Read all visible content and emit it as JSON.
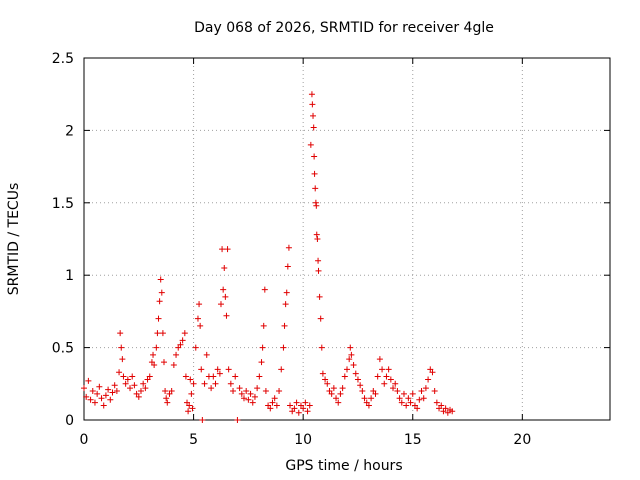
{
  "chart_data": {
    "type": "scatter",
    "title": "Day 068 of 2026, SRMTID for receiver 4gle",
    "xlabel": "GPS time / hours",
    "ylabel": "SRMTID / TECUs",
    "xlim": [
      0,
      24
    ],
    "ylim": [
      0,
      2.5
    ],
    "xticks": [
      "0",
      "5",
      "10",
      "15",
      "20"
    ],
    "yticks": [
      "0",
      "0.5",
      "1",
      "1.5",
      "2",
      "2.5"
    ],
    "grid": true,
    "marker": "plus",
    "color": "#e00000",
    "series": [
      {
        "name": "SRMTID",
        "points": [
          [
            0.0,
            0.22
          ],
          [
            0.1,
            0.16
          ],
          [
            0.2,
            0.27
          ],
          [
            0.3,
            0.14
          ],
          [
            0.4,
            0.2
          ],
          [
            0.5,
            0.12
          ],
          [
            0.6,
            0.18
          ],
          [
            0.7,
            0.23
          ],
          [
            0.8,
            0.15
          ],
          [
            0.9,
            0.1
          ],
          [
            1.0,
            0.17
          ],
          [
            1.1,
            0.21
          ],
          [
            1.2,
            0.14
          ],
          [
            1.3,
            0.19
          ],
          [
            1.4,
            0.24
          ],
          [
            1.5,
            0.2
          ],
          [
            1.6,
            0.33
          ],
          [
            1.65,
            0.6
          ],
          [
            1.7,
            0.5
          ],
          [
            1.75,
            0.42
          ],
          [
            1.8,
            0.3
          ],
          [
            1.9,
            0.25
          ],
          [
            2.0,
            0.28
          ],
          [
            2.1,
            0.22
          ],
          [
            2.2,
            0.3
          ],
          [
            2.3,
            0.24
          ],
          [
            2.4,
            0.18
          ],
          [
            2.5,
            0.16
          ],
          [
            2.6,
            0.2
          ],
          [
            2.7,
            0.25
          ],
          [
            2.8,
            0.22
          ],
          [
            2.9,
            0.28
          ],
          [
            3.0,
            0.3
          ],
          [
            3.1,
            0.4
          ],
          [
            3.15,
            0.45
          ],
          [
            3.2,
            0.38
          ],
          [
            3.3,
            0.5
          ],
          [
            3.35,
            0.6
          ],
          [
            3.4,
            0.7
          ],
          [
            3.45,
            0.82
          ],
          [
            3.5,
            0.97
          ],
          [
            3.55,
            0.88
          ],
          [
            3.6,
            0.6
          ],
          [
            3.65,
            0.4
          ],
          [
            3.7,
            0.2
          ],
          [
            3.75,
            0.15
          ],
          [
            3.8,
            0.12
          ],
          [
            3.9,
            0.18
          ],
          [
            4.0,
            0.2
          ],
          [
            4.1,
            0.38
          ],
          [
            4.2,
            0.45
          ],
          [
            4.3,
            0.5
          ],
          [
            4.4,
            0.52
          ],
          [
            4.5,
            0.55
          ],
          [
            4.6,
            0.6
          ],
          [
            4.65,
            0.3
          ],
          [
            4.7,
            0.12
          ],
          [
            4.75,
            0.06
          ],
          [
            4.8,
            0.1
          ],
          [
            4.85,
            0.28
          ],
          [
            4.9,
            0.18
          ],
          [
            4.95,
            0.08
          ],
          [
            5.0,
            0.25
          ],
          [
            5.1,
            0.5
          ],
          [
            5.2,
            0.7
          ],
          [
            5.25,
            0.8
          ],
          [
            5.3,
            0.65
          ],
          [
            5.35,
            0.35
          ],
          [
            5.4,
            0.0
          ],
          [
            5.5,
            0.25
          ],
          [
            5.6,
            0.45
          ],
          [
            5.7,
            0.3
          ],
          [
            5.8,
            0.22
          ],
          [
            5.9,
            0.3
          ],
          [
            6.0,
            0.25
          ],
          [
            6.1,
            0.35
          ],
          [
            6.2,
            0.32
          ],
          [
            6.25,
            0.8
          ],
          [
            6.3,
            1.18
          ],
          [
            6.35,
            0.9
          ],
          [
            6.4,
            1.05
          ],
          [
            6.45,
            0.85
          ],
          [
            6.5,
            0.72
          ],
          [
            6.55,
            1.18
          ],
          [
            6.6,
            0.35
          ],
          [
            6.7,
            0.25
          ],
          [
            6.8,
            0.2
          ],
          [
            6.9,
            0.3
          ],
          [
            7.0,
            0.0
          ],
          [
            7.1,
            0.22
          ],
          [
            7.2,
            0.18
          ],
          [
            7.3,
            0.15
          ],
          [
            7.4,
            0.2
          ],
          [
            7.5,
            0.14
          ],
          [
            7.6,
            0.18
          ],
          [
            7.7,
            0.12
          ],
          [
            7.8,
            0.16
          ],
          [
            7.9,
            0.22
          ],
          [
            8.0,
            0.3
          ],
          [
            8.1,
            0.4
          ],
          [
            8.15,
            0.5
          ],
          [
            8.2,
            0.65
          ],
          [
            8.25,
            0.9
          ],
          [
            8.3,
            0.2
          ],
          [
            8.4,
            0.1
          ],
          [
            8.5,
            0.08
          ],
          [
            8.6,
            0.12
          ],
          [
            8.7,
            0.15
          ],
          [
            8.8,
            0.1
          ],
          [
            8.9,
            0.2
          ],
          [
            9.0,
            0.35
          ],
          [
            9.1,
            0.5
          ],
          [
            9.15,
            0.65
          ],
          [
            9.2,
            0.8
          ],
          [
            9.25,
            0.88
          ],
          [
            9.3,
            1.06
          ],
          [
            9.35,
            1.19
          ],
          [
            9.4,
            0.1
          ],
          [
            9.5,
            0.06
          ],
          [
            9.6,
            0.08
          ],
          [
            9.7,
            0.12
          ],
          [
            9.8,
            0.05
          ],
          [
            9.9,
            0.1
          ],
          [
            10.0,
            0.08
          ],
          [
            10.1,
            0.12
          ],
          [
            10.2,
            0.06
          ],
          [
            10.3,
            0.1
          ],
          [
            10.35,
            1.9
          ],
          [
            10.4,
            2.25
          ],
          [
            10.42,
            2.18
          ],
          [
            10.45,
            2.1
          ],
          [
            10.48,
            2.02
          ],
          [
            10.5,
            1.82
          ],
          [
            10.52,
            1.7
          ],
          [
            10.55,
            1.6
          ],
          [
            10.58,
            1.5
          ],
          [
            10.6,
            1.48
          ],
          [
            10.62,
            1.28
          ],
          [
            10.65,
            1.25
          ],
          [
            10.68,
            1.1
          ],
          [
            10.7,
            1.03
          ],
          [
            10.75,
            0.85
          ],
          [
            10.8,
            0.7
          ],
          [
            10.85,
            0.5
          ],
          [
            10.9,
            0.32
          ],
          [
            11.0,
            0.28
          ],
          [
            11.1,
            0.25
          ],
          [
            11.2,
            0.2
          ],
          [
            11.3,
            0.18
          ],
          [
            11.4,
            0.22
          ],
          [
            11.5,
            0.15
          ],
          [
            11.6,
            0.12
          ],
          [
            11.7,
            0.18
          ],
          [
            11.8,
            0.22
          ],
          [
            11.9,
            0.3
          ],
          [
            12.0,
            0.35
          ],
          [
            12.1,
            0.42
          ],
          [
            12.15,
            0.5
          ],
          [
            12.2,
            0.45
          ],
          [
            12.3,
            0.38
          ],
          [
            12.4,
            0.32
          ],
          [
            12.5,
            0.28
          ],
          [
            12.6,
            0.24
          ],
          [
            12.7,
            0.2
          ],
          [
            12.8,
            0.15
          ],
          [
            12.9,
            0.12
          ],
          [
            13.0,
            0.1
          ],
          [
            13.1,
            0.15
          ],
          [
            13.2,
            0.2
          ],
          [
            13.3,
            0.18
          ],
          [
            13.4,
            0.3
          ],
          [
            13.5,
            0.42
          ],
          [
            13.6,
            0.35
          ],
          [
            13.7,
            0.25
          ],
          [
            13.8,
            0.3
          ],
          [
            13.9,
            0.35
          ],
          [
            14.0,
            0.28
          ],
          [
            14.1,
            0.22
          ],
          [
            14.2,
            0.25
          ],
          [
            14.3,
            0.2
          ],
          [
            14.4,
            0.15
          ],
          [
            14.5,
            0.12
          ],
          [
            14.6,
            0.18
          ],
          [
            14.7,
            0.1
          ],
          [
            14.8,
            0.15
          ],
          [
            14.9,
            0.12
          ],
          [
            15.0,
            0.18
          ],
          [
            15.1,
            0.1
          ],
          [
            15.2,
            0.08
          ],
          [
            15.3,
            0.14
          ],
          [
            15.4,
            0.2
          ],
          [
            15.5,
            0.15
          ],
          [
            15.6,
            0.22
          ],
          [
            15.7,
            0.28
          ],
          [
            15.8,
            0.35
          ],
          [
            15.9,
            0.33
          ],
          [
            16.0,
            0.2
          ],
          [
            16.1,
            0.12
          ],
          [
            16.2,
            0.08
          ],
          [
            16.3,
            0.1
          ],
          [
            16.4,
            0.06
          ],
          [
            16.5,
            0.08
          ],
          [
            16.6,
            0.05
          ],
          [
            16.7,
            0.07
          ],
          [
            16.8,
            0.06
          ]
        ]
      }
    ]
  }
}
